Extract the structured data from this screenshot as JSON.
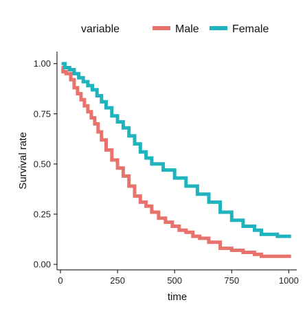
{
  "chart_data": {
    "type": "line",
    "title": "",
    "xlabel": "time",
    "ylabel": "Survival rate",
    "xlim": [
      0,
      1020
    ],
    "ylim": [
      0,
      1.04
    ],
    "x_ticks": [
      0,
      250,
      500,
      750,
      1000
    ],
    "y_ticks": [
      0.0,
      0.25,
      0.5,
      0.75,
      1.0
    ],
    "y_tick_labels": [
      "0.00",
      "0.25",
      "0.50",
      "0.75",
      "1.00"
    ],
    "grid": false,
    "step": true,
    "legend": {
      "title": "variable",
      "position": "top",
      "entries": [
        "Male",
        "Female"
      ]
    },
    "series": [
      {
        "name": "Male",
        "color": "#E8736C",
        "x": [
          5,
          11,
          25,
          45,
          60,
          75,
          90,
          105,
          120,
          135,
          150,
          165,
          180,
          200,
          225,
          250,
          275,
          300,
          325,
          350,
          375,
          400,
          430,
          460,
          490,
          520,
          550,
          580,
          610,
          650,
          700,
          750,
          800,
          850,
          880,
          950,
          1010
        ],
        "y": [
          0.98,
          0.96,
          0.95,
          0.92,
          0.88,
          0.85,
          0.82,
          0.79,
          0.76,
          0.73,
          0.7,
          0.66,
          0.62,
          0.57,
          0.52,
          0.48,
          0.44,
          0.39,
          0.34,
          0.31,
          0.29,
          0.26,
          0.23,
          0.21,
          0.19,
          0.17,
          0.16,
          0.14,
          0.13,
          0.11,
          0.08,
          0.07,
          0.06,
          0.05,
          0.04,
          0.04,
          0.04
        ]
      },
      {
        "name": "Female",
        "color": "#1FB4BD",
        "x": [
          5,
          20,
          40,
          60,
          80,
          100,
          120,
          140,
          160,
          180,
          200,
          225,
          250,
          275,
          300,
          325,
          350,
          375,
          400,
          450,
          500,
          550,
          600,
          650,
          700,
          750,
          800,
          850,
          880,
          950,
          1010
        ],
        "y": [
          1.0,
          0.98,
          0.97,
          0.95,
          0.93,
          0.91,
          0.89,
          0.87,
          0.84,
          0.81,
          0.78,
          0.74,
          0.71,
          0.68,
          0.64,
          0.6,
          0.56,
          0.53,
          0.5,
          0.47,
          0.43,
          0.39,
          0.35,
          0.31,
          0.26,
          0.22,
          0.19,
          0.17,
          0.15,
          0.14,
          0.14
        ]
      }
    ]
  }
}
